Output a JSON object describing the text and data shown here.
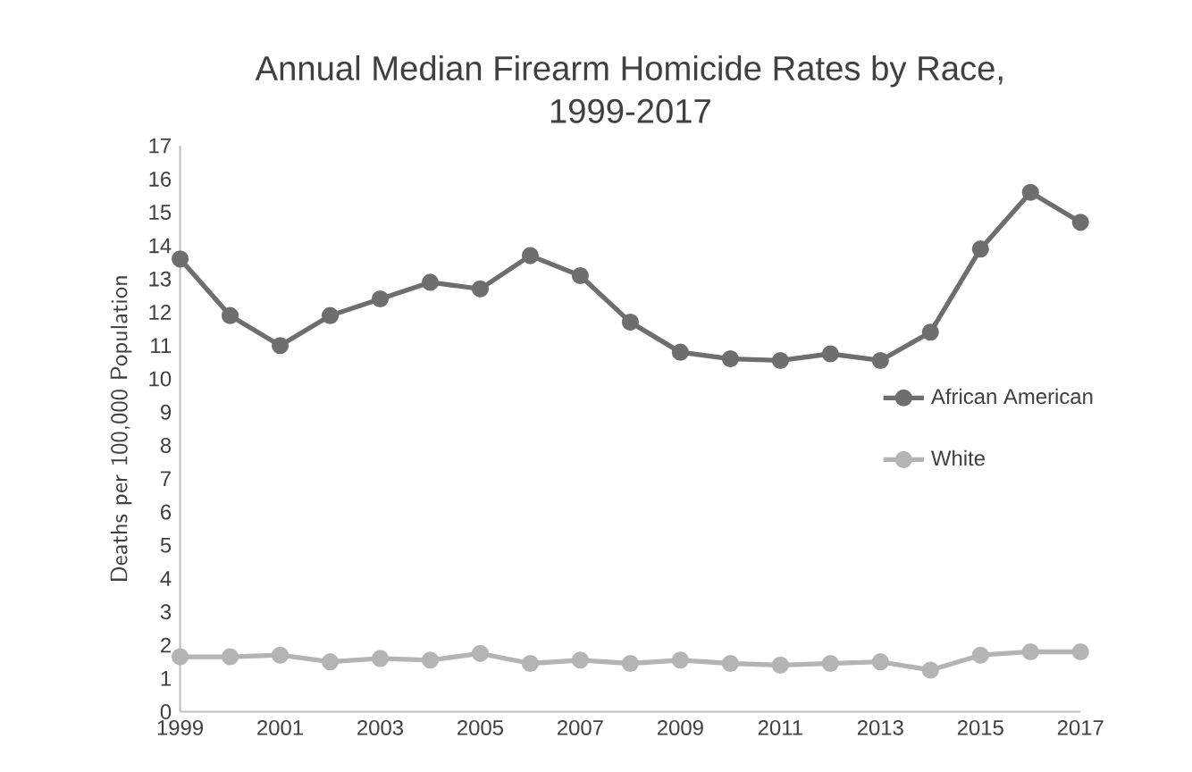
{
  "chart_data": {
    "type": "line",
    "title": "Annual Median Firearm Homicide Rates by Race,\n1999-2017",
    "ylabel": "Deaths per 100,000 Population",
    "x": [
      1999,
      2000,
      2001,
      2002,
      2003,
      2004,
      2005,
      2006,
      2007,
      2008,
      2009,
      2010,
      2011,
      2012,
      2013,
      2014,
      2015,
      2016,
      2017
    ],
    "series": [
      {
        "name": "African American",
        "color": "#6e6e6e",
        "values": [
          13.6,
          11.9,
          11.0,
          11.9,
          12.4,
          12.9,
          12.7,
          13.7,
          13.1,
          11.7,
          10.8,
          10.6,
          10.55,
          10.75,
          10.55,
          11.4,
          13.9,
          15.6,
          14.7
        ]
      },
      {
        "name": "White",
        "color": "#b4b4b4",
        "values": [
          1.65,
          1.65,
          1.7,
          1.5,
          1.6,
          1.55,
          1.75,
          1.45,
          1.55,
          1.45,
          1.55,
          1.45,
          1.4,
          1.45,
          1.5,
          1.25,
          1.7,
          1.8,
          1.8
        ]
      }
    ],
    "xlim": [
      1999,
      2017
    ],
    "xticks": [
      1999,
      2001,
      2003,
      2005,
      2007,
      2009,
      2011,
      2013,
      2015,
      2017
    ],
    "ylim": [
      0,
      17
    ],
    "yticks": [
      0,
      1,
      2,
      3,
      4,
      5,
      6,
      7,
      8,
      9,
      10,
      11,
      12,
      13,
      14,
      15,
      16,
      17
    ],
    "grid": false,
    "legend": "right",
    "marker": "circle",
    "line_style": "solid"
  }
}
